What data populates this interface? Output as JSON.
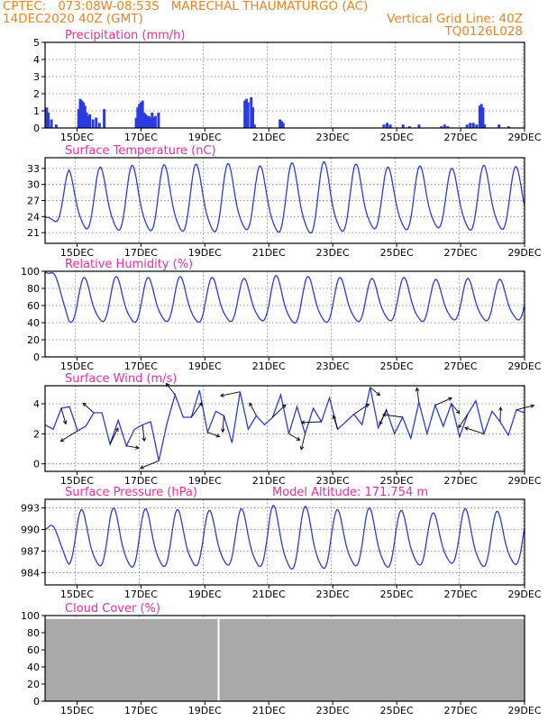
{
  "header": {
    "line1_left": "CPTEC:   073:08W-08:53S   MARECHAL THAUMATURGO (AC)",
    "line2_left": "14DEC2020 40Z (GMT)",
    "line2_right": "Vertical Grid Line: 40Z",
    "line3_right": "TQ0126L028"
  },
  "colors": {
    "header": "#ee8322",
    "title": "#ee2c9a",
    "series": "#2b3be0",
    "cloud": "#a9a9a9",
    "arrow": "#000000"
  },
  "x_ticks": [
    "15DEC",
    "17DEC",
    "19DEC",
    "21DEC",
    "23DEC",
    "25DEC",
    "27DEC",
    "29DEC"
  ],
  "chart_data": [
    {
      "id": "precip",
      "type": "bar",
      "title": "Precipitation (mm/h)",
      "ylim": [
        0,
        5
      ],
      "yticks": [
        "0",
        "1",
        "2",
        "3",
        "4",
        "5"
      ],
      "x_range_days": [
        14.0,
        29.0
      ],
      "x": [
        14.05,
        14.1,
        14.2,
        14.35,
        15.05,
        15.1,
        15.15,
        15.2,
        15.25,
        15.3,
        15.35,
        15.4,
        15.5,
        15.6,
        15.7,
        15.85,
        16.85,
        16.9,
        16.95,
        17.0,
        17.05,
        17.1,
        17.15,
        17.2,
        17.25,
        17.3,
        17.35,
        17.4,
        17.45,
        17.55,
        20.25,
        20.3,
        20.35,
        20.45,
        20.5,
        20.55,
        21.35,
        21.4,
        21.45,
        24.6,
        24.7,
        24.8,
        25.2,
        25.4,
        25.7,
        26.4,
        26.5,
        26.6,
        27.2,
        27.3,
        27.4,
        27.5,
        27.6,
        27.65,
        27.7,
        27.75,
        28.2,
        28.5
      ],
      "values": [
        1.2,
        0.9,
        0.5,
        0.2,
        1.1,
        1.7,
        1.6,
        1.5,
        1.3,
        0.9,
        0.7,
        0.8,
        0.5,
        0.6,
        0.3,
        1.1,
        0.6,
        1.2,
        1.4,
        1.5,
        1.6,
        0.9,
        0.8,
        0.7,
        0.7,
        0.6,
        0.9,
        0.6,
        0.7,
        0.9,
        1.6,
        1.7,
        1.5,
        1.8,
        1.2,
        0.2,
        0.5,
        0.4,
        0.3,
        0.2,
        0.3,
        0.2,
        0.2,
        0.1,
        0.2,
        0.1,
        0.2,
        0.1,
        0.2,
        0.3,
        0.3,
        0.2,
        1.3,
        1.4,
        1.2,
        0.2,
        0.2,
        0.1
      ]
    },
    {
      "id": "temp",
      "type": "line",
      "title": "Surface Temperature (nC)",
      "ylim": [
        19,
        35
      ],
      "yticks": [
        "21",
        "24",
        "27",
        "30",
        "33"
      ],
      "ytick_values": [
        21,
        24,
        27,
        30,
        33
      ],
      "model": {
        "base": 26.8,
        "amp": [
          5.2,
          5.6,
          5.9,
          6.0,
          6.1,
          6.2,
          5.8,
          6.3,
          6.5,
          6.1,
          5.6,
          5.8,
          5.4,
          5.9,
          5.7,
          5.2
        ],
        "peak_hour": 18,
        "start": {
          "x": 14.0,
          "y": 23.8
        }
      }
    },
    {
      "id": "rh",
      "type": "line",
      "title": "Relative Humidity (%)",
      "ylim": [
        0,
        100
      ],
      "yticks": [
        "0",
        "20",
        "40",
        "60",
        "80",
        "100"
      ],
      "ytick_values": [
        0,
        20,
        40,
        60,
        80,
        100
      ],
      "model": {
        "base": 64,
        "amp": [
          26,
          25,
          26,
          25,
          26,
          25,
          24,
          27,
          26,
          25,
          24,
          25,
          23,
          24,
          23,
          22
        ],
        "peak_hour": 6,
        "start": {
          "x": 14.0,
          "y": 100
        }
      }
    },
    {
      "id": "wind",
      "type": "line",
      "title": "Surface Wind (m/s)",
      "ylim": [
        -0.5,
        5.2
      ],
      "yticks": [
        "0",
        "2",
        "4"
      ],
      "ytick_values": [
        0,
        2,
        4
      ],
      "values": [
        2.6,
        2.3,
        3.7,
        3.8,
        2.2,
        2.5,
        3.4,
        3.4,
        1.3,
        2.9,
        1.2,
        2.3,
        2.6,
        2.8,
        0.2,
        2.7,
        4.6,
        3.1,
        3.1,
        4.9,
        2.1,
        3.5,
        3.2,
        1.4,
        4.8,
        2.3,
        3.2,
        2.6,
        3.1,
        4.6,
        2.0,
        3.8,
        2.0,
        3.7,
        2.8,
        4.4,
        2.3,
        2.8,
        3.3,
        2.6,
        5.1,
        2.4,
        3.6,
        2.0,
        3.1,
        1.7,
        4.1,
        2.0,
        3.9,
        2.5,
        4.0,
        1.8,
        3.3,
        4.2,
        2.0,
        3.5,
        2.8,
        1.9,
        3.6,
        3.4
      ]
    },
    {
      "id": "pressure",
      "type": "line",
      "title": "Surface Pressure (hPa)",
      "annotation": "Model Altitude: 171.754 m",
      "ylim": [
        982.3,
        994.2
      ],
      "yticks": [
        "984",
        "987",
        "990",
        "993"
      ],
      "ytick_values": [
        984,
        987,
        990,
        993
      ],
      "model": {
        "base": 988.4,
        "amp": [
          3.6,
          3.8,
          4.0,
          3.9,
          3.8,
          3.7,
          3.9,
          4.3,
          4.2,
          3.8,
          4.0,
          3.7,
          3.4,
          3.9,
          3.6,
          3.3
        ],
        "peak_hour": 4,
        "start": {
          "x": 14.0,
          "y": 990
        }
      }
    },
    {
      "id": "cloud",
      "type": "area",
      "title": "Cloud Cover (%)",
      "ylim": [
        0,
        100
      ],
      "yticks": [
        "0",
        "20",
        "40",
        "60",
        "80",
        "100"
      ],
      "ytick_values": [
        0,
        20,
        40,
        60,
        80,
        100
      ],
      "fill_level": 96,
      "gap_at_x": 19.4
    }
  ]
}
